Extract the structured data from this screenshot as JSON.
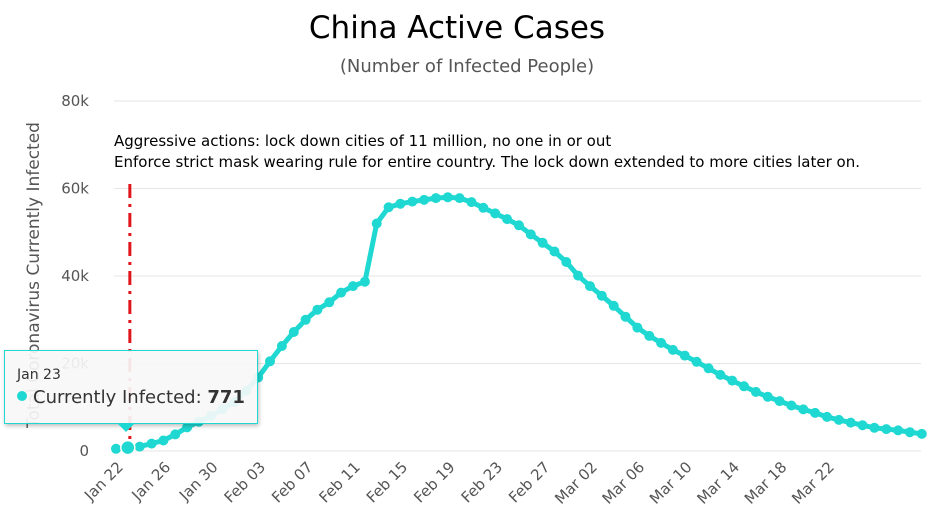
{
  "chart_data": {
    "type": "line",
    "title": "China Active Cases",
    "subtitle": "(Number of Infected People)",
    "ylabel": "Total Coronavirus Currently Infected",
    "xlabel": "",
    "ylim": [
      0,
      80000
    ],
    "y_ticks": [
      "0",
      "20k",
      "40k",
      "60k",
      "80k"
    ],
    "y_tick_values": [
      0,
      20000,
      40000,
      60000,
      80000
    ],
    "x_tick_labels": [
      "Jan 22",
      "Jan 26",
      "Jan 30",
      "Feb 03",
      "Feb 07",
      "Feb 11",
      "Feb 15",
      "Feb 19",
      "Feb 23",
      "Feb 27",
      "Mar 02",
      "Mar 06",
      "Mar 10",
      "Mar 14",
      "Mar 18",
      "Mar 22"
    ],
    "x_start_date": "Jan 22",
    "grid": true,
    "legend": "none",
    "series": [
      {
        "name": "Currently Infected",
        "color": "#1fd8d2",
        "values": [
          503,
          771,
          1000,
          1700,
          2400,
          3800,
          5400,
          6700,
          8000,
          9600,
          11200,
          13800,
          16800,
          20500,
          24000,
          27200,
          30000,
          32300,
          34000,
          36200,
          37700,
          38700,
          52000,
          55700,
          56500,
          57000,
          57400,
          57800,
          58000,
          57800,
          56900,
          55600,
          54300,
          53000,
          51600,
          49500,
          47600,
          45600,
          43200,
          40100,
          37700,
          35500,
          33200,
          30700,
          28200,
          26300,
          24700,
          23100,
          21800,
          20400,
          18900,
          17400,
          16100,
          14800,
          13500,
          12400,
          11400,
          10400,
          9500,
          8700,
          7800,
          7100,
          6500,
          5900,
          5300,
          5000,
          4700,
          4300,
          3900
        ]
      }
    ],
    "annotation_lines": [
      "Aggressive actions: lock down cities of 11 million, no one in or out",
      "Enforce strict mask wearing rule for entire country. The lock down extended to more cities later on."
    ],
    "marker_date": "Jan 23",
    "marker_color": "#e0151b",
    "tooltip": {
      "date": "Jan 23",
      "series_name": "Currently Infected: ",
      "value": "771"
    }
  }
}
